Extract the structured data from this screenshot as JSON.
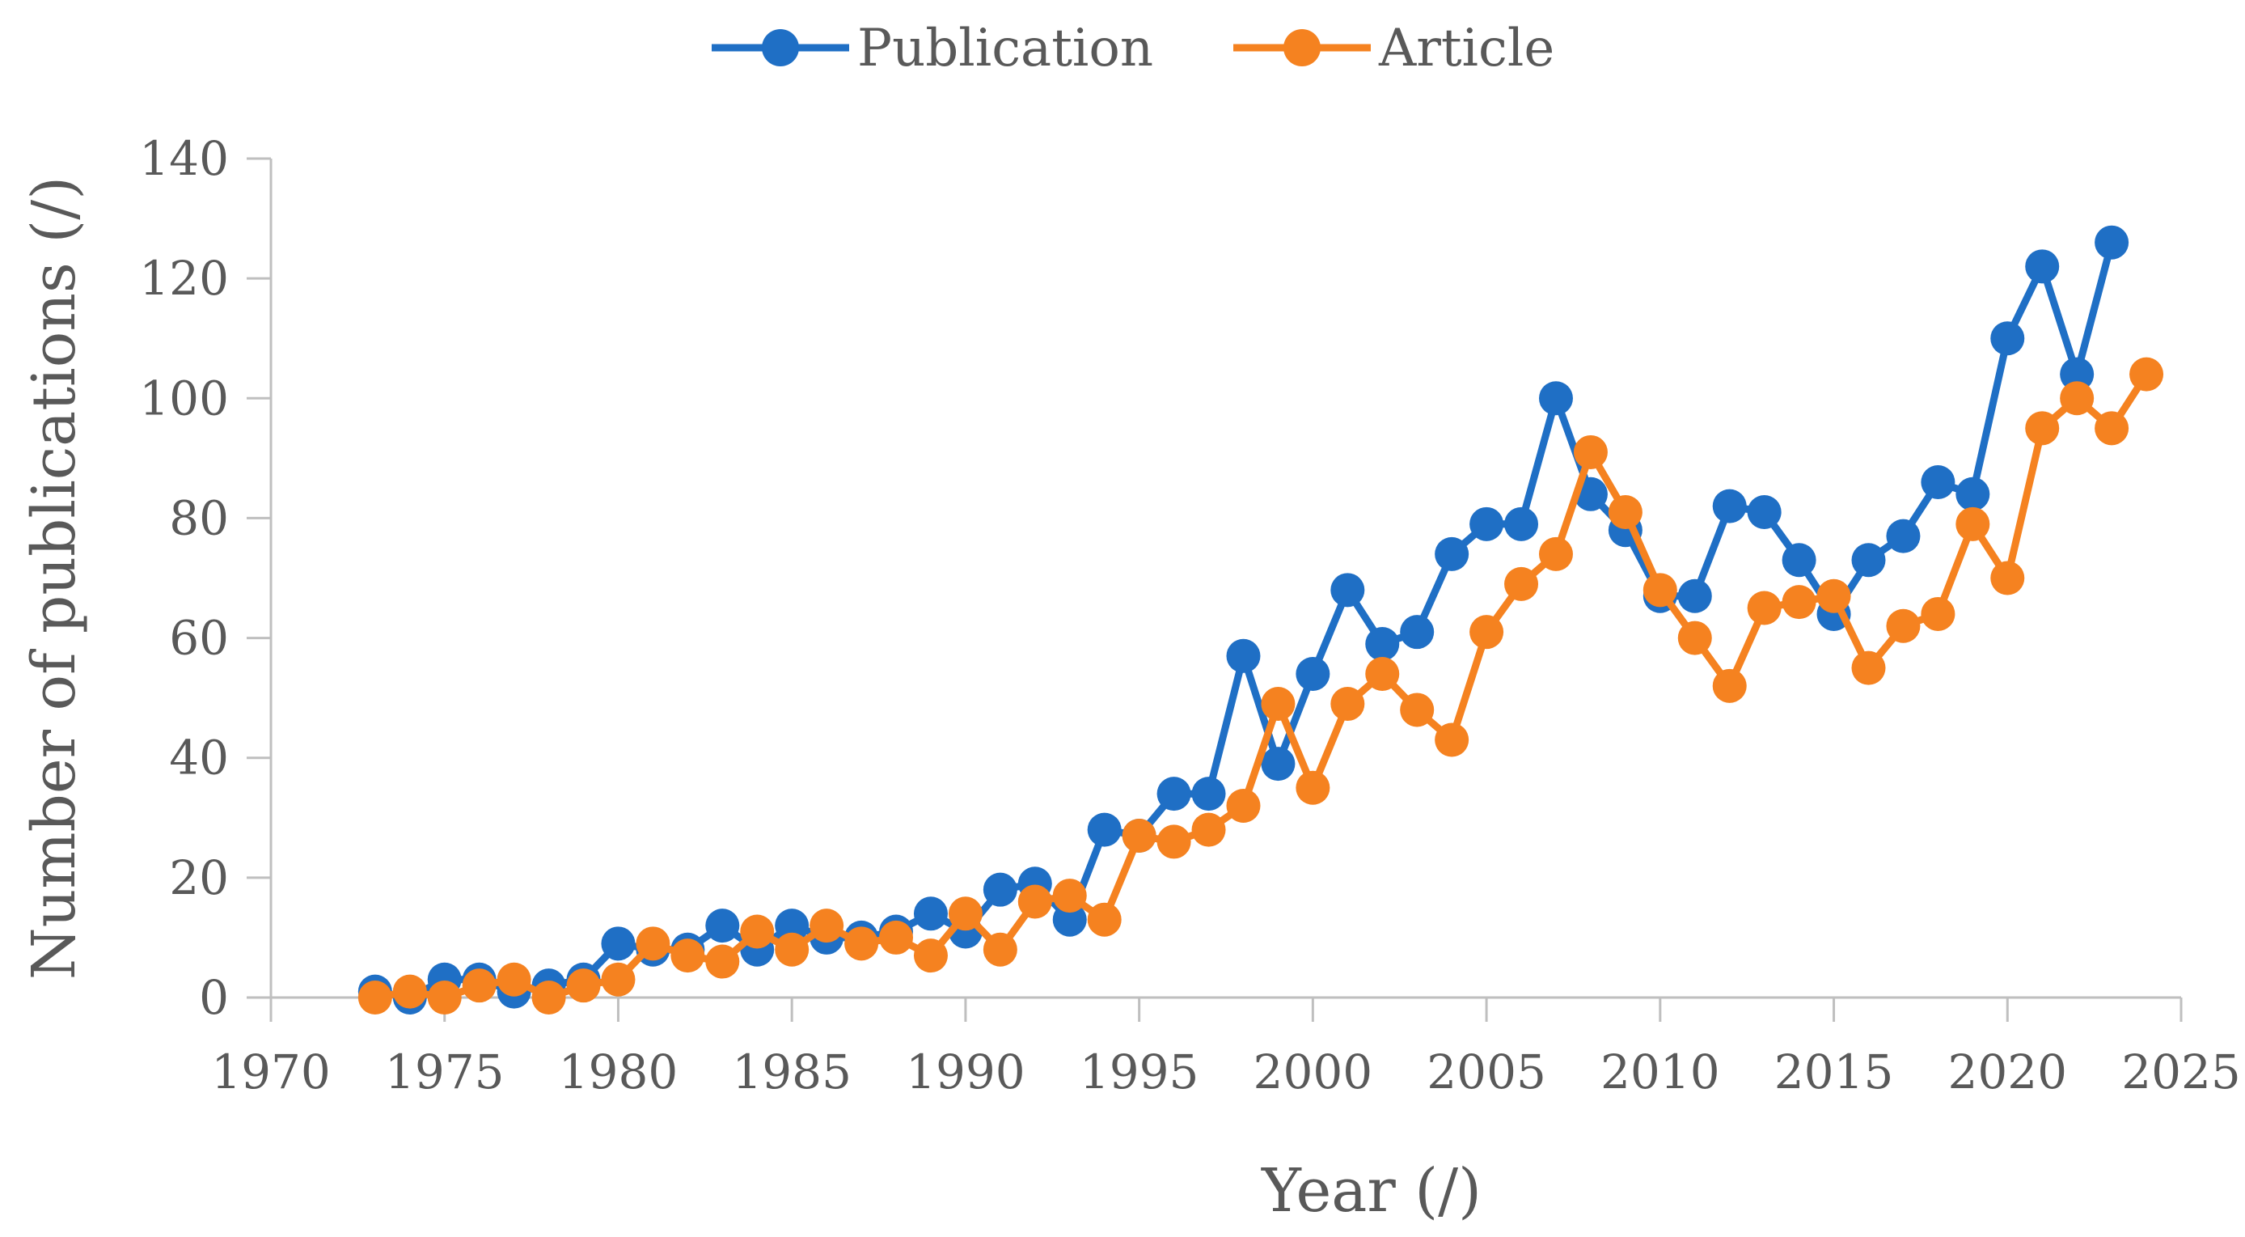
{
  "chart_data": {
    "type": "line",
    "xlabel": "Year (/)",
    "ylabel": "Number of publications (/)",
    "xlim": [
      1970,
      2025
    ],
    "ylim": [
      0,
      140
    ],
    "x_ticks": [
      1970,
      1975,
      1980,
      1985,
      1990,
      1995,
      2000,
      2005,
      2010,
      2015,
      2020,
      2025
    ],
    "y_ticks": [
      0,
      20,
      40,
      60,
      80,
      100,
      120,
      140
    ],
    "grid": false,
    "legend_position": "top-center",
    "series": [
      {
        "name": "Publication",
        "color": "#1f6fc5",
        "x": [
          1973,
          1974,
          1975,
          1976,
          1977,
          1978,
          1979,
          1980,
          1981,
          1982,
          1983,
          1984,
          1985,
          1986,
          1987,
          1988,
          1989,
          1990,
          1991,
          1992,
          1993,
          1994,
          1995,
          1996,
          1997,
          1998,
          1999,
          2000,
          2001,
          2002,
          2003,
          2004,
          2005,
          2006,
          2007,
          2008,
          2009,
          2010,
          2011,
          2012,
          2013,
          2014,
          2015,
          2016,
          2017,
          2018,
          2019,
          2020,
          2021,
          2022,
          2023
        ],
        "values": [
          1,
          0,
          3,
          3,
          1,
          2,
          3,
          9,
          8,
          8,
          12,
          8,
          12,
          10,
          10,
          11,
          14,
          11,
          18,
          19,
          13,
          28,
          27,
          34,
          34,
          57,
          39,
          54,
          68,
          59,
          61,
          74,
          79,
          79,
          100,
          84,
          78,
          67,
          67,
          82,
          81,
          73,
          64,
          73,
          77,
          86,
          84,
          110,
          122,
          104,
          126
        ]
      },
      {
        "name": "Article",
        "color": "#f58220",
        "x": [
          1973,
          1974,
          1975,
          1976,
          1977,
          1978,
          1979,
          1980,
          1981,
          1982,
          1983,
          1984,
          1985,
          1986,
          1987,
          1988,
          1989,
          1990,
          1991,
          1992,
          1993,
          1994,
          1995,
          1996,
          1997,
          1998,
          1999,
          2000,
          2001,
          2002,
          2003,
          2004,
          2005,
          2006,
          2007,
          2008,
          2009,
          2010,
          2011,
          2012,
          2013,
          2014,
          2015,
          2016,
          2017,
          2018,
          2019,
          2020,
          2021,
          2022,
          2023,
          2024
        ],
        "values": [
          0,
          1,
          0,
          2,
          3,
          0,
          2,
          3,
          9,
          7,
          6,
          11,
          8,
          12,
          9,
          10,
          7,
          14,
          8,
          16,
          17,
          13,
          27,
          26,
          28,
          32,
          49,
          35,
          49,
          54,
          48,
          43,
          61,
          69,
          74,
          91,
          81,
          68,
          60,
          52,
          65,
          66,
          67,
          55,
          62,
          64,
          79,
          70,
          95,
          100,
          95,
          104
        ]
      }
    ]
  }
}
